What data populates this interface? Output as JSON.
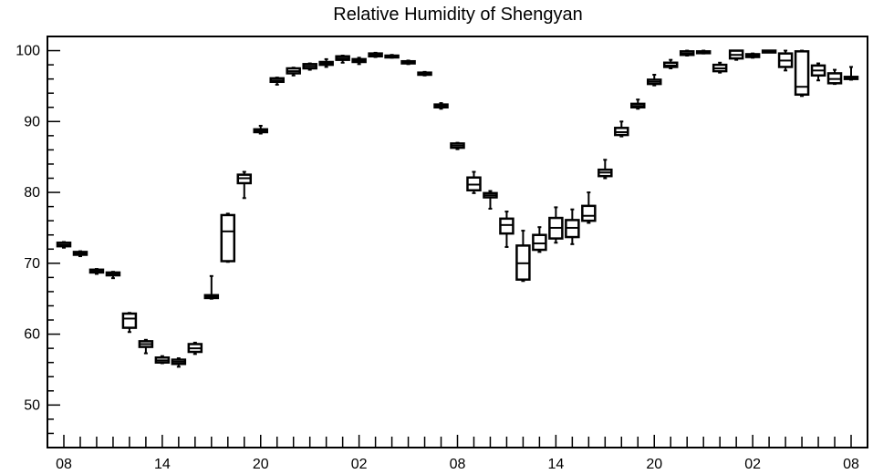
{
  "chart_data": {
    "type": "box",
    "title": "Relative Humidity of Shengyan",
    "xlabel": "",
    "ylabel": "",
    "ylim": [
      44,
      102
    ],
    "x_tick_labels": [
      "08",
      "14",
      "20",
      "02",
      "08",
      "14",
      "20",
      "02",
      "08"
    ],
    "x_tick_positions_hours": [
      0,
      6,
      12,
      18,
      24,
      30,
      36,
      42,
      48
    ],
    "y_tick_labels": [
      "50",
      "60",
      "70",
      "80",
      "90",
      "100"
    ],
    "y_tick_values": [
      50,
      60,
      70,
      80,
      90,
      100
    ],
    "grid": false,
    "boxes": [
      {
        "x": 0,
        "min": 72.2,
        "q1": 72.4,
        "median": 72.6,
        "q3": 72.9,
        "max": 73.0
      },
      {
        "x": 1,
        "min": 71.0,
        "q1": 71.2,
        "median": 71.4,
        "q3": 71.6,
        "max": 71.7
      },
      {
        "x": 2,
        "min": 68.5,
        "q1": 68.7,
        "median": 68.9,
        "q3": 69.1,
        "max": 69.2
      },
      {
        "x": 3,
        "min": 67.9,
        "q1": 68.3,
        "median": 68.5,
        "q3": 68.7,
        "max": 68.8
      },
      {
        "x": 4,
        "min": 60.3,
        "q1": 60.9,
        "median": 62.2,
        "q3": 62.9,
        "max": 63.0
      },
      {
        "x": 5,
        "min": 57.3,
        "q1": 58.2,
        "median": 58.6,
        "q3": 59.0,
        "max": 59.2
      },
      {
        "x": 6,
        "min": 55.9,
        "q1": 56.0,
        "median": 56.3,
        "q3": 56.7,
        "max": 56.9
      },
      {
        "x": 7,
        "min": 55.4,
        "q1": 55.8,
        "median": 56.1,
        "q3": 56.4,
        "max": 56.6
      },
      {
        "x": 8,
        "min": 57.2,
        "q1": 57.5,
        "median": 58.0,
        "q3": 58.6,
        "max": 58.8
      },
      {
        "x": 9,
        "min": 65.0,
        "q1": 65.1,
        "median": 65.3,
        "q3": 65.5,
        "max": 68.2
      },
      {
        "x": 10,
        "min": 70.2,
        "q1": 70.3,
        "median": 74.5,
        "q3": 76.8,
        "max": 77.0
      },
      {
        "x": 11,
        "min": 79.2,
        "q1": 81.3,
        "median": 82.0,
        "q3": 82.5,
        "max": 82.9
      },
      {
        "x": 12,
        "min": 88.3,
        "q1": 88.5,
        "median": 88.7,
        "q3": 88.9,
        "max": 89.4
      },
      {
        "x": 13,
        "min": 95.2,
        "q1": 95.6,
        "median": 95.8,
        "q3": 96.1,
        "max": 96.2
      },
      {
        "x": 14,
        "min": 96.5,
        "q1": 96.8,
        "median": 97.1,
        "q3": 97.5,
        "max": 97.6
      },
      {
        "x": 15,
        "min": 97.3,
        "q1": 97.5,
        "median": 97.8,
        "q3": 98.1,
        "max": 98.2
      },
      {
        "x": 16,
        "min": 97.7,
        "q1": 98.0,
        "median": 98.2,
        "q3": 98.4,
        "max": 98.8
      },
      {
        "x": 17,
        "min": 98.3,
        "q1": 98.7,
        "median": 98.9,
        "q3": 99.2,
        "max": 99.3
      },
      {
        "x": 18,
        "min": 98.1,
        "q1": 98.4,
        "median": 98.6,
        "q3": 98.8,
        "max": 99.0
      },
      {
        "x": 19,
        "min": 99.1,
        "q1": 99.2,
        "median": 99.4,
        "q3": 99.6,
        "max": 99.7
      },
      {
        "x": 20,
        "min": 99.0,
        "q1": 99.1,
        "median": 99.2,
        "q3": 99.3,
        "max": 99.4
      },
      {
        "x": 21,
        "min": 98.1,
        "q1": 98.2,
        "median": 98.3,
        "q3": 98.5,
        "max": 98.6
      },
      {
        "x": 22,
        "min": 96.5,
        "q1": 96.6,
        "median": 96.7,
        "q3": 96.9,
        "max": 97.0
      },
      {
        "x": 23,
        "min": 91.8,
        "q1": 92.0,
        "median": 92.2,
        "q3": 92.4,
        "max": 92.6
      },
      {
        "x": 24,
        "min": 86.1,
        "q1": 86.3,
        "median": 86.6,
        "q3": 86.9,
        "max": 87.0
      },
      {
        "x": 25,
        "min": 79.9,
        "q1": 80.3,
        "median": 81.1,
        "q3": 82.1,
        "max": 82.9
      },
      {
        "x": 26,
        "min": 77.7,
        "q1": 79.3,
        "median": 79.6,
        "q3": 79.9,
        "max": 80.2
      },
      {
        "x": 27,
        "min": 72.3,
        "q1": 74.2,
        "median": 75.4,
        "q3": 76.3,
        "max": 77.3
      },
      {
        "x": 28,
        "min": 67.5,
        "q1": 67.7,
        "median": 70.0,
        "q3": 72.5,
        "max": 74.6
      },
      {
        "x": 29,
        "min": 71.6,
        "q1": 71.9,
        "median": 72.8,
        "q3": 74.0,
        "max": 75.1
      },
      {
        "x": 30,
        "min": 72.9,
        "q1": 73.5,
        "median": 75.0,
        "q3": 76.4,
        "max": 77.9
      },
      {
        "x": 31,
        "min": 72.7,
        "q1": 73.7,
        "median": 75.0,
        "q3": 76.1,
        "max": 77.6
      },
      {
        "x": 32,
        "min": 75.7,
        "q1": 76.0,
        "median": 76.7,
        "q3": 78.1,
        "max": 80.0
      },
      {
        "x": 33,
        "min": 82.0,
        "q1": 82.3,
        "median": 82.8,
        "q3": 83.2,
        "max": 84.6
      },
      {
        "x": 34,
        "min": 87.9,
        "q1": 88.1,
        "median": 88.5,
        "q3": 89.1,
        "max": 90.0
      },
      {
        "x": 35,
        "min": 91.8,
        "q1": 92.0,
        "median": 92.2,
        "q3": 92.5,
        "max": 93.1
      },
      {
        "x": 36,
        "min": 95.1,
        "q1": 95.3,
        "median": 95.6,
        "q3": 95.9,
        "max": 96.6
      },
      {
        "x": 37,
        "min": 97.5,
        "q1": 97.7,
        "median": 97.9,
        "q3": 98.3,
        "max": 98.7
      },
      {
        "x": 38,
        "min": 99.3,
        "q1": 99.4,
        "median": 99.6,
        "q3": 99.9,
        "max": 100.0
      },
      {
        "x": 39,
        "min": 99.6,
        "q1": 99.7,
        "median": 99.8,
        "q3": 99.9,
        "max": 100.0
      },
      {
        "x": 40,
        "min": 96.9,
        "q1": 97.1,
        "median": 97.5,
        "q3": 98.0,
        "max": 98.3
      },
      {
        "x": 41,
        "min": 98.7,
        "q1": 98.9,
        "median": 99.4,
        "q3": 100.0,
        "max": 100.0
      },
      {
        "x": 42,
        "min": 99.0,
        "q1": 99.1,
        "median": 99.3,
        "q3": 99.5,
        "max": 99.6
      },
      {
        "x": 43,
        "min": 99.8,
        "q1": 99.9,
        "median": 100.0,
        "q3": 100.0,
        "max": 100.0
      },
      {
        "x": 44,
        "min": 97.2,
        "q1": 97.7,
        "median": 98.6,
        "q3": 99.6,
        "max": 100.0
      },
      {
        "x": 45,
        "min": 93.6,
        "q1": 93.8,
        "median": 94.9,
        "q3": 99.9,
        "max": 100.0
      },
      {
        "x": 46,
        "min": 95.8,
        "q1": 96.5,
        "median": 97.2,
        "q3": 97.9,
        "max": 98.2
      },
      {
        "x": 47,
        "min": 95.3,
        "q1": 95.4,
        "median": 96.0,
        "q3": 96.8,
        "max": 97.3
      },
      {
        "x": 48,
        "min": 95.9,
        "q1": 96.0,
        "median": 96.1,
        "q3": 96.3,
        "max": 97.7
      }
    ]
  }
}
